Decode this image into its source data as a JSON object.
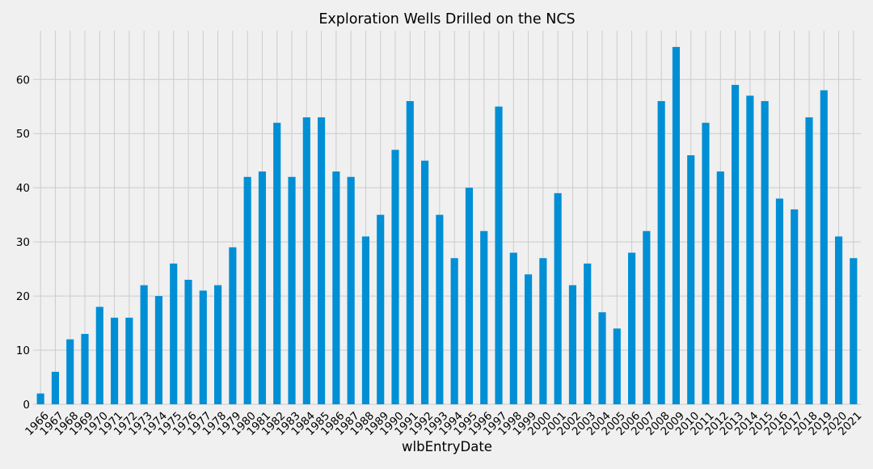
{
  "chart_data": {
    "type": "bar",
    "title": "Exploration Wells Drilled on the NCS",
    "xlabel": "wlbEntryDate",
    "ylabel": "",
    "categories": [
      "1966",
      "1967",
      "1968",
      "1969",
      "1970",
      "1971",
      "1972",
      "1973",
      "1974",
      "1975",
      "1976",
      "1977",
      "1978",
      "1979",
      "1980",
      "1981",
      "1982",
      "1983",
      "1984",
      "1985",
      "1986",
      "1987",
      "1988",
      "1989",
      "1990",
      "1991",
      "1992",
      "1993",
      "1994",
      "1995",
      "1996",
      "1997",
      "1998",
      "1999",
      "2000",
      "2001",
      "2002",
      "2003",
      "2004",
      "2005",
      "2006",
      "2007",
      "2008",
      "2009",
      "2010",
      "2011",
      "2012",
      "2013",
      "2014",
      "2015",
      "2016",
      "2017",
      "2018",
      "2019",
      "2020",
      "2021"
    ],
    "values": [
      2,
      6,
      12,
      13,
      18,
      16,
      16,
      22,
      20,
      26,
      23,
      21,
      22,
      29,
      42,
      43,
      52,
      42,
      53,
      53,
      43,
      42,
      31,
      35,
      47,
      56,
      45,
      35,
      27,
      40,
      32,
      55,
      28,
      24,
      27,
      39,
      22,
      26,
      17,
      14,
      28,
      32,
      56,
      66,
      46,
      52,
      43,
      59,
      57,
      56,
      38,
      36,
      53,
      58,
      31,
      27
    ],
    "ylim": [
      0,
      69
    ],
    "yticks": [
      0,
      10,
      20,
      30,
      40,
      50,
      60
    ],
    "grid": true,
    "legend": "none",
    "bar_color": "#008fd5",
    "background_color": "#f0f0f0",
    "grid_color": "#cbcbcb"
  }
}
